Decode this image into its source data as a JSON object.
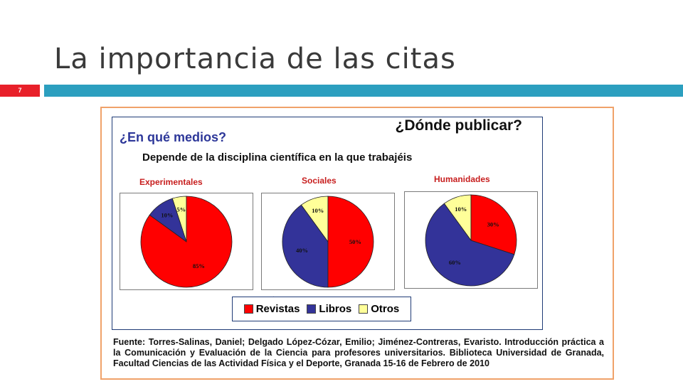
{
  "slide": {
    "title": "La importancia de las citas",
    "number": "7"
  },
  "figure": {
    "heading": "¿Dónde publicar?",
    "question": "¿En qué medios?",
    "subtitle": "Depende de la disciplina científica en la que trabajéis",
    "source": "Fuente: Torres-Salinas, Daniel; Delgado López-Cózar, Emilio; Jiménez-Contreras, Evaristo. Introducción práctica a la Comunicación y Evaluación de la Ciencia para profesores universitarios. Biblioteca Universidad de Granada, Facultad Ciencias de las Actividad Física y el Deporte, Granada 15-16 de Febrero de 2010",
    "dot": "."
  },
  "chart_data": {
    "type": "pie",
    "legend_position": "bottom-center",
    "legend": [
      "Revistas",
      "Libros",
      "Otros"
    ],
    "colors": {
      "Revistas": "#ff0000",
      "Libros": "#333399",
      "Otros": "#ffff99"
    },
    "charts": [
      {
        "category": "Experimentales",
        "values": {
          "Revistas": 85,
          "Libros": 10,
          "Otros": 5
        },
        "labels": {
          "Revistas": "85%",
          "Libros": "10%",
          "Otros": "5%"
        }
      },
      {
        "category": "Sociales",
        "values": {
          "Revistas": 50,
          "Libros": 40,
          "Otros": 10
        },
        "labels": {
          "Revistas": "50%",
          "Libros": "40%",
          "Otros": "10%"
        }
      },
      {
        "category": "Humanidades",
        "values": {
          "Revistas": 30,
          "Libros": 60,
          "Otros": 10
        },
        "labels": {
          "Revistas": "30%",
          "Libros": "60%",
          "Otros": "10%"
        }
      }
    ]
  }
}
